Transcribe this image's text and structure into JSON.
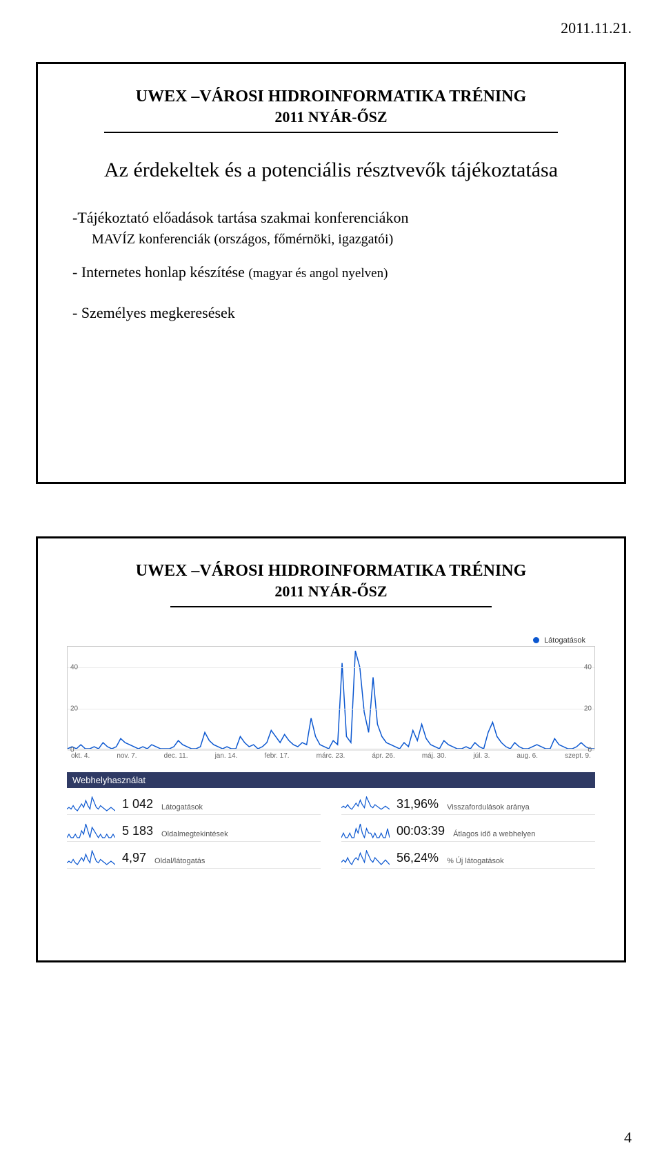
{
  "page": {
    "date": "2011.11.21.",
    "number": "4"
  },
  "slide_a": {
    "title_line1": "UWEX –VÁROSI HIDROINFORMATIKA TRÉNING",
    "title_line2": "2011 NYÁR-ŐSZ",
    "heading": "Az érdekeltek és a potenciális résztvevők tájékoztatása",
    "bullets": [
      {
        "text": "-Tájékoztató előadások tartása szakmai  konferenciákon",
        "sub": "MAVÍZ konferenciák (országos, főmérnöki, igazgatói)"
      },
      {
        "text": "- Internetes honlap készítése",
        "note": "(magyar és angol nyelven)"
      },
      {
        "text": "- Személyes megkeresések"
      }
    ]
  },
  "slide_b": {
    "title_line1": "UWEX –VÁROSI HIDROINFORMATIKA TRÉNING",
    "title_line2": "2011 NYÁR-ŐSZ",
    "chart": {
      "legend_label": "Látogatások",
      "series_color": "#0b57d0",
      "grid_color": "#eaeaea",
      "border_color": "#c9c9c9",
      "bg_color": "#ffffff",
      "ymax": 50,
      "yticks": [
        0,
        20,
        40
      ],
      "x_labels": [
        "okt. 4.",
        "nov. 7.",
        "dec. 11.",
        "jan. 14.",
        "febr. 17.",
        "márc. 23.",
        "ápr. 26.",
        "máj. 30.",
        "júl. 3.",
        "aug. 6.",
        "szept. 9."
      ],
      "values": [
        0,
        1,
        0,
        2,
        0,
        0,
        1,
        0,
        3,
        1,
        0,
        1,
        5,
        3,
        2,
        1,
        0,
        1,
        0,
        2,
        1,
        0,
        0,
        0,
        1,
        4,
        2,
        1,
        0,
        0,
        1,
        8,
        4,
        2,
        1,
        0,
        1,
        0,
        0,
        6,
        3,
        1,
        2,
        0,
        1,
        3,
        9,
        6,
        3,
        7,
        4,
        2,
        1,
        3,
        2,
        15,
        6,
        2,
        1,
        0,
        4,
        2,
        42,
        6,
        3,
        48,
        40,
        18,
        8,
        35,
        12,
        6,
        3,
        2,
        1,
        0,
        3,
        1,
        9,
        4,
        12,
        5,
        2,
        1,
        0,
        4,
        2,
        1,
        0,
        0,
        1,
        0,
        3,
        1,
        0,
        8,
        13,
        6,
        3,
        1,
        0,
        3,
        1,
        0,
        0,
        1,
        2,
        1,
        0,
        0,
        5,
        2,
        1,
        0,
        0,
        1,
        3,
        1,
        0,
        0
      ]
    },
    "section_label": "Webhelyhasználat",
    "stats": [
      {
        "value": "1 042",
        "label": "Látogatások",
        "spark": [
          1,
          2,
          1,
          3,
          1,
          0,
          2,
          4,
          2,
          6,
          3,
          1,
          8,
          5,
          2,
          1,
          3,
          2,
          1,
          0,
          1,
          2,
          1,
          0
        ]
      },
      {
        "value": "31,96%",
        "label": "Visszafordulások aránya",
        "spark": [
          2,
          3,
          2,
          4,
          2,
          1,
          3,
          5,
          3,
          7,
          4,
          2,
          9,
          6,
          3,
          2,
          4,
          3,
          2,
          1,
          2,
          3,
          2,
          1
        ]
      },
      {
        "value": "5 183",
        "label": "Oldalmegtekintések",
        "spark": [
          0,
          1,
          0,
          0,
          1,
          0,
          0,
          2,
          1,
          4,
          2,
          0,
          3,
          2,
          1,
          0,
          1,
          0,
          0,
          1,
          0,
          0,
          1,
          0
        ]
      },
      {
        "value": "00:03:39",
        "label": "Átlagos idő a webhelyen",
        "spark": [
          0,
          1,
          0,
          0,
          1,
          0,
          0,
          2,
          1,
          3,
          1,
          0,
          2,
          1,
          1,
          0,
          1,
          0,
          0,
          1,
          0,
          0,
          2,
          0
        ]
      },
      {
        "value": "4,97",
        "label": "Oldal/látogatás",
        "spark": [
          1,
          2,
          1,
          3,
          1,
          0,
          2,
          4,
          2,
          6,
          3,
          1,
          8,
          5,
          2,
          1,
          3,
          2,
          1,
          0,
          1,
          2,
          1,
          0
        ]
      },
      {
        "value": "56,24%",
        "label": "% Új látogatások",
        "spark": [
          1,
          2,
          1,
          3,
          1,
          0,
          2,
          3,
          2,
          5,
          3,
          1,
          6,
          4,
          2,
          1,
          3,
          2,
          1,
          0,
          1,
          2,
          1,
          0
        ]
      }
    ],
    "spark_color": "#0b57d0",
    "stat_value_color": "#111111",
    "stat_label_color": "#555555",
    "section_bar_bg": "#2f3a64"
  }
}
